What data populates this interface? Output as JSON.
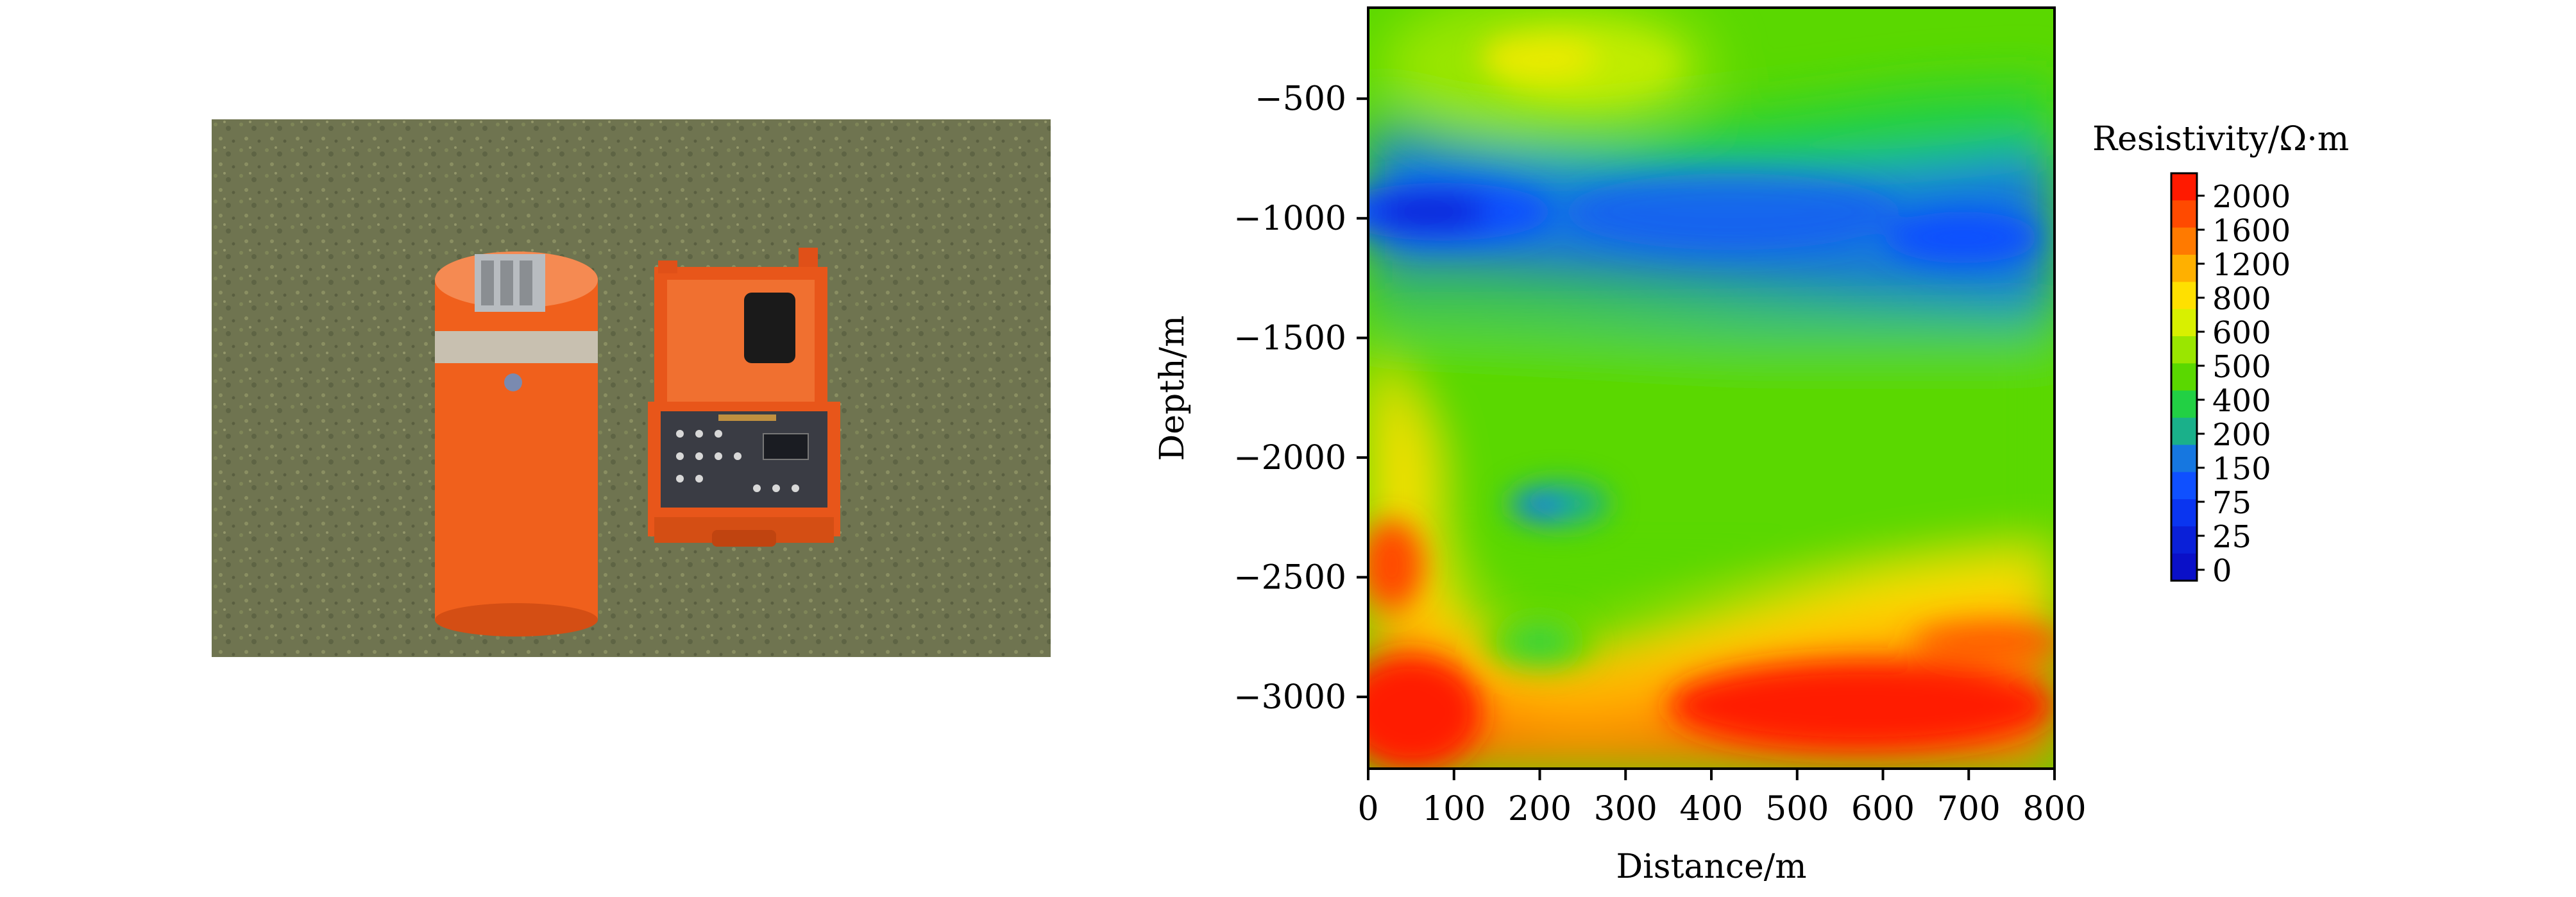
{
  "photo": {
    "description_icon": "field-instrument-photo"
  },
  "chart_data": {
    "type": "heatmap",
    "xlabel": "Distance/m",
    "ylabel": "Depth/m",
    "xlim": [
      0,
      800
    ],
    "ylim": [
      -3300,
      -120
    ],
    "x_ticks": [
      0,
      100,
      200,
      300,
      400,
      500,
      600,
      700,
      800
    ],
    "x_tick_labels": [
      "0",
      "100",
      "200",
      "300",
      "400",
      "500",
      "600",
      "700",
      "800"
    ],
    "y_ticks": [
      -500,
      -1000,
      -1500,
      -2000,
      -2500,
      -3000
    ],
    "y_tick_labels": [
      "−500",
      "−1000",
      "−1500",
      "−2000",
      "−2500",
      "−3000"
    ],
    "colorbar": {
      "title": "Resistivity/Ω·m",
      "levels": [
        "2000",
        "1600",
        "1200",
        "800",
        "600",
        "500",
        "400",
        "200",
        "150",
        "75",
        "25",
        "0"
      ],
      "colors": [
        "#ff1a00",
        "#ff4a00",
        "#ff7a00",
        "#ffb000",
        "#ffe000",
        "#d8f000",
        "#9ae600",
        "#5ad800",
        "#22d044",
        "#1ab08a",
        "#1677e0",
        "#0f50ff",
        "#0a35f0",
        "#0a20d8",
        "#0a10c8"
      ]
    },
    "grid": false,
    "features": [
      {
        "name": "high-resistivity-lens",
        "x": 210,
        "y": -330,
        "value": 1100
      },
      {
        "name": "low-resistivity-band",
        "x_range": [
          0,
          800
        ],
        "y_range": [
          -1400,
          -700
        ],
        "value": 150
      },
      {
        "name": "low-resistivity-core",
        "x": 130,
        "y": -1000,
        "value": 25
      },
      {
        "name": "low-resistivity-anomaly",
        "x": 220,
        "y": -2200,
        "value": 150
      },
      {
        "name": "moderate-anomaly",
        "x": 230,
        "y": -2770,
        "value": 500
      },
      {
        "name": "high-resistivity-zone-left",
        "x": 60,
        "y": -3050,
        "value": 2000
      },
      {
        "name": "high-resistivity-zone-right",
        "x": 600,
        "y": -3000,
        "value": 2000
      }
    ]
  }
}
